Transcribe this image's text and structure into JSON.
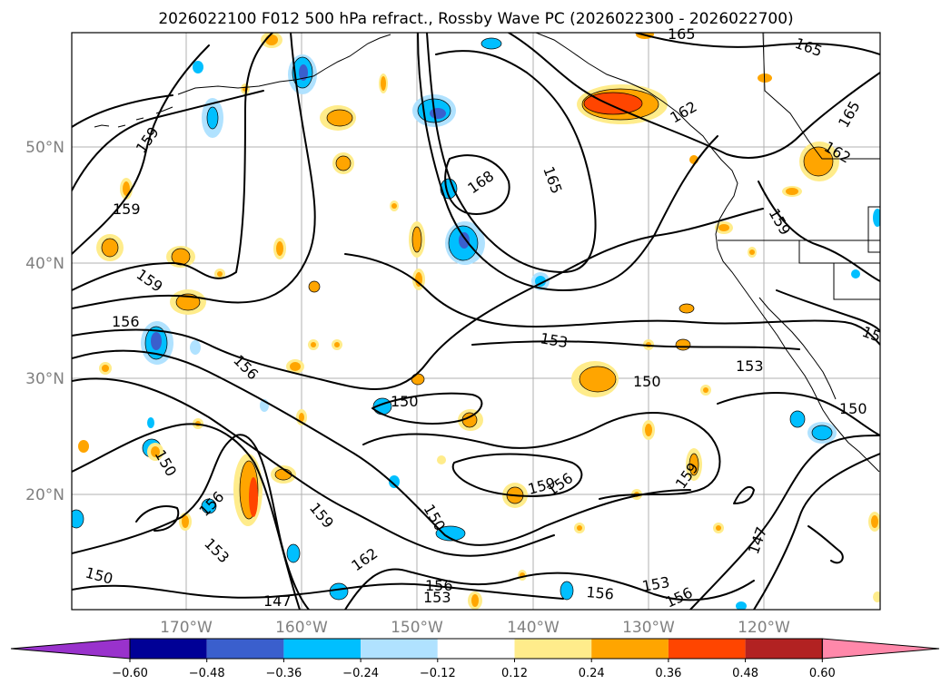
{
  "title": "2026022100 F012 500 hPa refract., Rossby Wave PC (2026022300 - 2026022700)",
  "map": {
    "lon_ticks": [
      "170°W",
      "160°W",
      "150°W",
      "140°W",
      "130°W",
      "120°W"
    ],
    "lat_ticks": [
      "50°N",
      "40°N",
      "30°N",
      "20°N"
    ],
    "contour_labels": [
      "159",
      "159",
      "159",
      "156",
      "156",
      "150",
      "156",
      "153",
      "159",
      "150",
      "147",
      "162",
      "156",
      "153",
      "150",
      "168",
      "165",
      "153",
      "150",
      "159",
      "156",
      "159",
      "150",
      "147",
      "153",
      "156",
      "156",
      "153",
      "162",
      "162",
      "159",
      "165",
      "165",
      "150",
      "15"
    ]
  },
  "colorbar": {
    "ticks": [
      "−0.60",
      "−0.48",
      "−0.36",
      "−0.24",
      "−0.12",
      "0.12",
      "0.24",
      "0.36",
      "0.48",
      "0.60"
    ],
    "colors": [
      "#9932cc",
      "#000096",
      "#3a5fcd",
      "#00bfff",
      "#b0e2ff",
      "#ffffff",
      "#ffec8b",
      "#ffa500",
      "#ff4500",
      "#b22222",
      "#ff88aa"
    ]
  }
}
